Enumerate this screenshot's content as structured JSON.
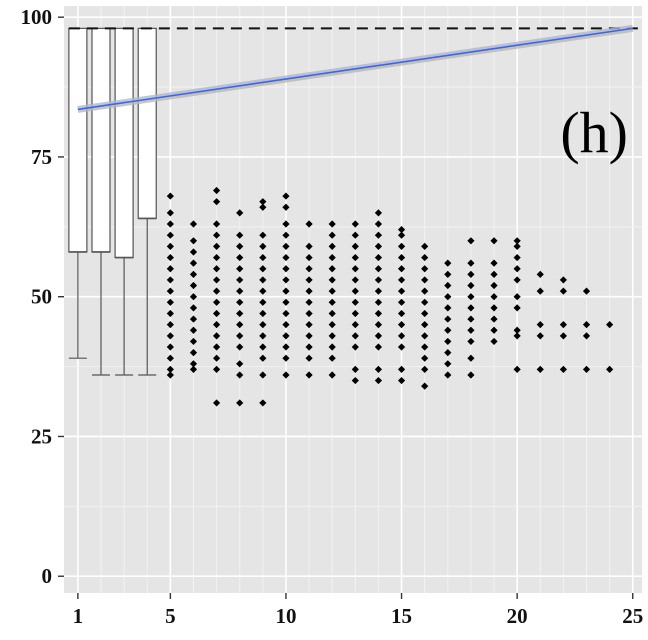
{
  "chart_data": {
    "type": "scatter",
    "panel_label": "(h)",
    "title": "",
    "xlabel": "",
    "ylabel": "",
    "xlim": [
      0.4,
      25.4
    ],
    "ylim": [
      -3,
      102
    ],
    "x_ticks": [
      1,
      5,
      10,
      15,
      20,
      25
    ],
    "x_tick_labels": [
      "1",
      "5",
      "10",
      "15",
      "20",
      "25"
    ],
    "y_ticks": [
      0,
      25,
      50,
      75,
      100
    ],
    "y_tick_labels": [
      "0",
      "25",
      "50",
      "75",
      "100"
    ],
    "grid": true,
    "colors": {
      "panel": "#e5e5e5",
      "grid_major": "#ffffff",
      "grid_minor": "#f2f2f2",
      "points": "#000000",
      "trend": "#3366ff",
      "ribbon": "#b8b8b8",
      "box": "#ffffff",
      "box_edge": "#555555"
    },
    "reference_line": {
      "y": 98,
      "style": "dashed"
    },
    "trend_line": {
      "x": [
        1,
        25
      ],
      "y": [
        83.5,
        98
      ]
    },
    "boxes": [
      {
        "x": 1,
        "lower_whisker": 39,
        "q1": 58,
        "median": 58,
        "q3": 98,
        "upper_whisker": 98
      },
      {
        "x": 2,
        "lower_whisker": 36,
        "q1": 58,
        "median": 58,
        "q3": 98,
        "upper_whisker": 98
      },
      {
        "x": 3,
        "lower_whisker": 36,
        "q1": 57,
        "median": 57,
        "q3": 98,
        "upper_whisker": 98
      },
      {
        "x": 4,
        "lower_whisker": 36,
        "q1": 64,
        "median": 64,
        "q3": 98,
        "upper_whisker": 98
      }
    ],
    "points": [
      {
        "x": 5,
        "y": [
          68,
          65,
          63,
          61,
          59,
          57,
          55,
          53,
          51,
          49,
          47,
          45,
          43,
          41,
          39,
          37,
          36
        ]
      },
      {
        "x": 6,
        "y": [
          63,
          60,
          58,
          56,
          54,
          52,
          50,
          48,
          46,
          44,
          42,
          40,
          38,
          37
        ]
      },
      {
        "x": 7,
        "y": [
          69,
          67,
          63,
          61,
          59,
          57,
          55,
          53,
          51,
          49,
          47,
          45,
          43,
          41,
          39,
          37,
          31
        ]
      },
      {
        "x": 8,
        "y": [
          65,
          61,
          59,
          57,
          55,
          53,
          51,
          49,
          47,
          45,
          43,
          41,
          38,
          36,
          31
        ]
      },
      {
        "x": 9,
        "y": [
          67,
          66,
          61,
          59,
          57,
          55,
          53,
          51,
          49,
          47,
          45,
          43,
          41,
          39,
          36,
          31
        ]
      },
      {
        "x": 10,
        "y": [
          68,
          66,
          63,
          61,
          59,
          57,
          55,
          53,
          51,
          49,
          47,
          45,
          43,
          41,
          39,
          36
        ]
      },
      {
        "x": 11,
        "y": [
          63,
          59,
          57,
          55,
          53,
          51,
          49,
          47,
          45,
          43,
          41,
          39,
          36
        ]
      },
      {
        "x": 12,
        "y": [
          63,
          61,
          59,
          57,
          55,
          53,
          51,
          49,
          47,
          45,
          43,
          41,
          39,
          36
        ]
      },
      {
        "x": 13,
        "y": [
          63,
          61,
          59,
          57,
          55,
          53,
          51,
          49,
          47,
          45,
          43,
          41,
          37,
          35
        ]
      },
      {
        "x": 14,
        "y": [
          65,
          63,
          61,
          59,
          57,
          55,
          53,
          51,
          49,
          47,
          45,
          43,
          41,
          37,
          35
        ]
      },
      {
        "x": 15,
        "y": [
          62,
          61,
          59,
          57,
          55,
          53,
          51,
          49,
          47,
          45,
          43,
          41,
          37,
          35
        ]
      },
      {
        "x": 16,
        "y": [
          59,
          57,
          55,
          53,
          51,
          49,
          47,
          45,
          43,
          41,
          39,
          37,
          34
        ]
      },
      {
        "x": 17,
        "y": [
          56,
          54,
          52,
          50,
          48,
          46,
          44,
          42,
          40,
          38,
          36
        ]
      },
      {
        "x": 18,
        "y": [
          60,
          56,
          54,
          52,
          50,
          48,
          46,
          44,
          42,
          39,
          36
        ]
      },
      {
        "x": 19,
        "y": [
          60,
          56,
          54,
          52,
          50,
          48,
          46,
          44,
          42
        ]
      },
      {
        "x": 20,
        "y": [
          60,
          59,
          57,
          55,
          53,
          50,
          48,
          44,
          43,
          37
        ]
      },
      {
        "x": 21,
        "y": [
          54,
          51,
          45,
          43,
          37
        ]
      },
      {
        "x": 22,
        "y": [
          53,
          51,
          45,
          43,
          37
        ]
      },
      {
        "x": 23,
        "y": [
          51,
          45,
          43,
          37
        ]
      },
      {
        "x": 24,
        "y": [
          45,
          37
        ]
      }
    ]
  }
}
